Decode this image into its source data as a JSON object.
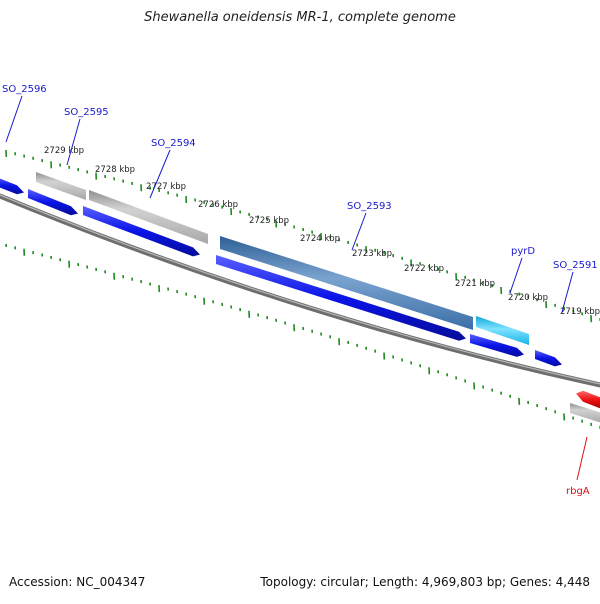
{
  "title": "Shewanella oneidensis MR-1, complete genome",
  "footer": {
    "accession": "Accession: NC_004347",
    "summary": "Topology: circular; Length: 4,969,803 bp; Genes: 4,448"
  },
  "colors": {
    "backbone": "#777777",
    "tick": "#1f8a1f",
    "cds_blue": "#0a14e6",
    "gene_grey": "#b4b4b4",
    "steelblue": "#4f7fb0",
    "cyan": "#22c4ee",
    "red": "#ee1111",
    "label_blue": "#1a1acc",
    "label_red": "#dd1111"
  },
  "kbp_labels": [
    {
      "text": "2729 kbp"
    },
    {
      "text": "2728 kbp"
    },
    {
      "text": "2727 kbp"
    },
    {
      "text": "2726 kbp"
    },
    {
      "text": "2725 kbp"
    },
    {
      "text": "2724 kbp"
    },
    {
      "text": "2723 kbp"
    },
    {
      "text": "2722 kbp"
    },
    {
      "text": "2721 kbp"
    },
    {
      "text": "2720 kbp"
    },
    {
      "text": "2719 kbp"
    }
  ],
  "gene_labels": [
    {
      "text": "SO_2596",
      "color": "blue"
    },
    {
      "text": "SO_2595",
      "color": "blue"
    },
    {
      "text": "SO_2594",
      "color": "blue"
    },
    {
      "text": "SO_2593",
      "color": "blue"
    },
    {
      "text": "pyrD",
      "color": "blue"
    },
    {
      "text": "SO_2591",
      "color": "blue"
    },
    {
      "text": "rbgA",
      "color": "red"
    }
  ],
  "features": [
    {
      "name": "feature-blue-1",
      "color": "cds_blue"
    },
    {
      "name": "feature-blue-2",
      "color": "cds_blue"
    },
    {
      "name": "feature-blue-3",
      "color": "cds_blue"
    },
    {
      "name": "feature-blue-4",
      "color": "cds_blue"
    },
    {
      "name": "feature-blue-5",
      "color": "cds_blue"
    },
    {
      "name": "feature-blue-6",
      "color": "cds_blue"
    },
    {
      "name": "feature-grey-1",
      "color": "gene_grey"
    },
    {
      "name": "feature-grey-2",
      "color": "gene_grey"
    },
    {
      "name": "feature-grey-3",
      "color": "gene_grey"
    },
    {
      "name": "feature-steelblue",
      "color": "steelblue"
    },
    {
      "name": "feature-cyan",
      "color": "cyan"
    },
    {
      "name": "feature-red",
      "color": "red"
    }
  ]
}
